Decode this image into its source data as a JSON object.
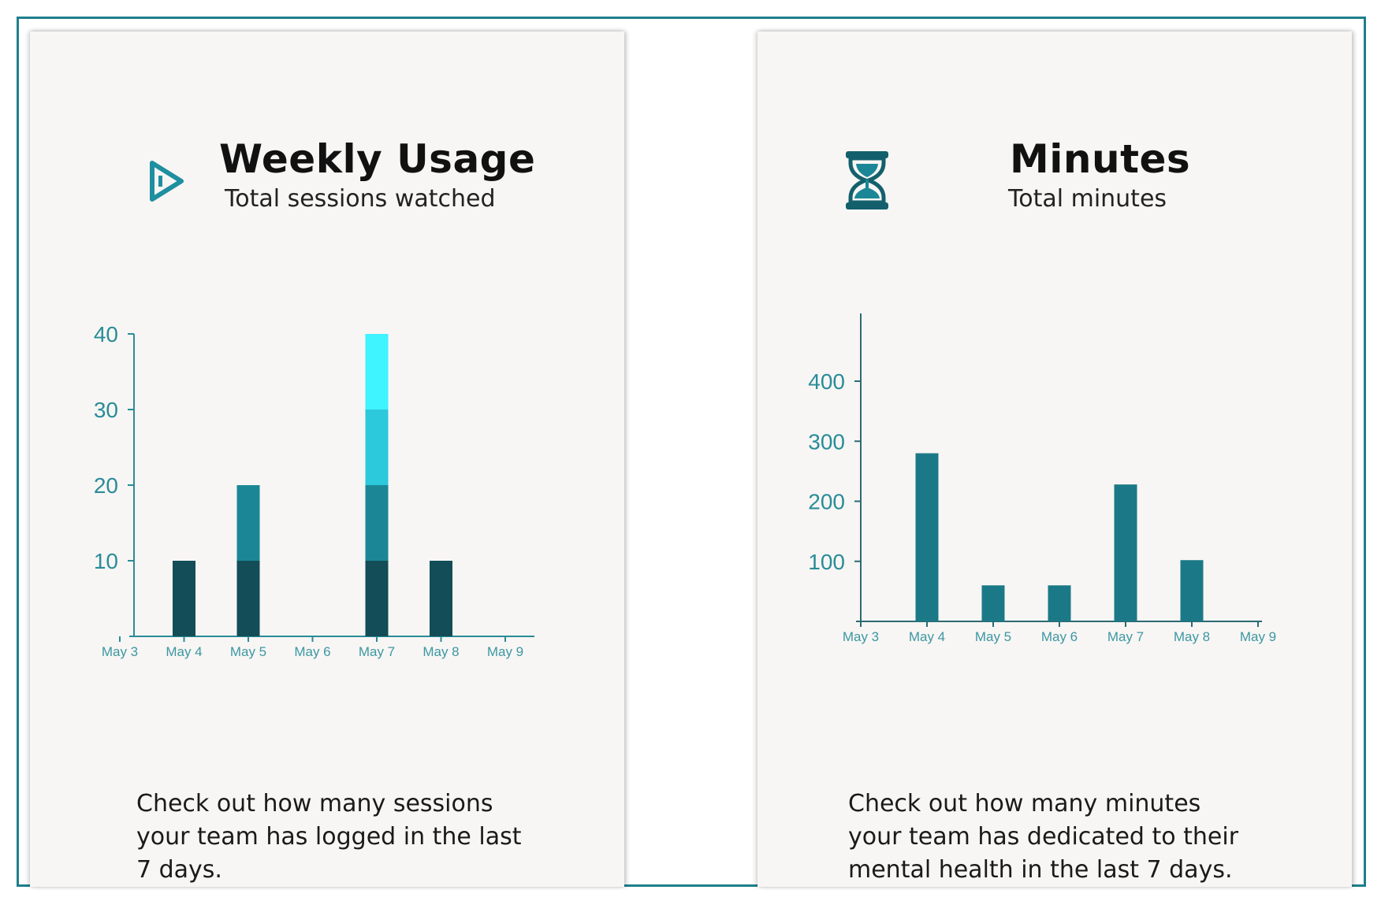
{
  "colors": {
    "frame": "#1e7f8c",
    "axis": "#2a8c98",
    "stack_1": "#124d58",
    "stack_2": "#1b8796",
    "stack_3": "#2cc8dc",
    "stack_4": "#3ff3ff",
    "minutes_bar": "#1b7987"
  },
  "weekly_usage": {
    "title": "Weekly Usage",
    "subtitle": "Total sessions watched",
    "description": "Check out how many sessions your team has logged in the last 7 days.",
    "icon": "play-triangle-icon"
  },
  "minutes": {
    "title": "Minutes",
    "subtitle": "Total minutes",
    "description": "Check out how many minutes your team has dedicated to their mental health in the last 7 days.",
    "icon": "hourglass-icon"
  },
  "chart_data": [
    {
      "type": "bar",
      "stacked": true,
      "title": "Weekly Usage",
      "categories": [
        "May 3",
        "May 4",
        "May 5",
        "May 6",
        "May 7",
        "May 8",
        "May 9"
      ],
      "series": [
        {
          "values": [
            0,
            10,
            10,
            0,
            10,
            10,
            0
          ]
        },
        {
          "values": [
            0,
            0,
            10,
            0,
            10,
            0,
            0
          ]
        },
        {
          "values": [
            0,
            0,
            0,
            0,
            10,
            0,
            0
          ]
        },
        {
          "values": [
            0,
            0,
            0,
            0,
            10,
            0,
            0
          ]
        }
      ],
      "yticks": [
        10,
        20,
        30,
        40
      ],
      "ylim": [
        0,
        40
      ],
      "grid": false
    },
    {
      "type": "bar",
      "title": "Minutes",
      "categories": [
        "May 3",
        "May 4",
        "May 5",
        "May 6",
        "May 7",
        "May 8",
        "May 9"
      ],
      "series": [
        {
          "values": [
            0,
            280,
            60,
            60,
            228,
            102,
            0
          ]
        }
      ],
      "yticks": [
        100,
        200,
        300,
        400
      ],
      "ylim": [
        0,
        480
      ],
      "grid": false
    }
  ]
}
